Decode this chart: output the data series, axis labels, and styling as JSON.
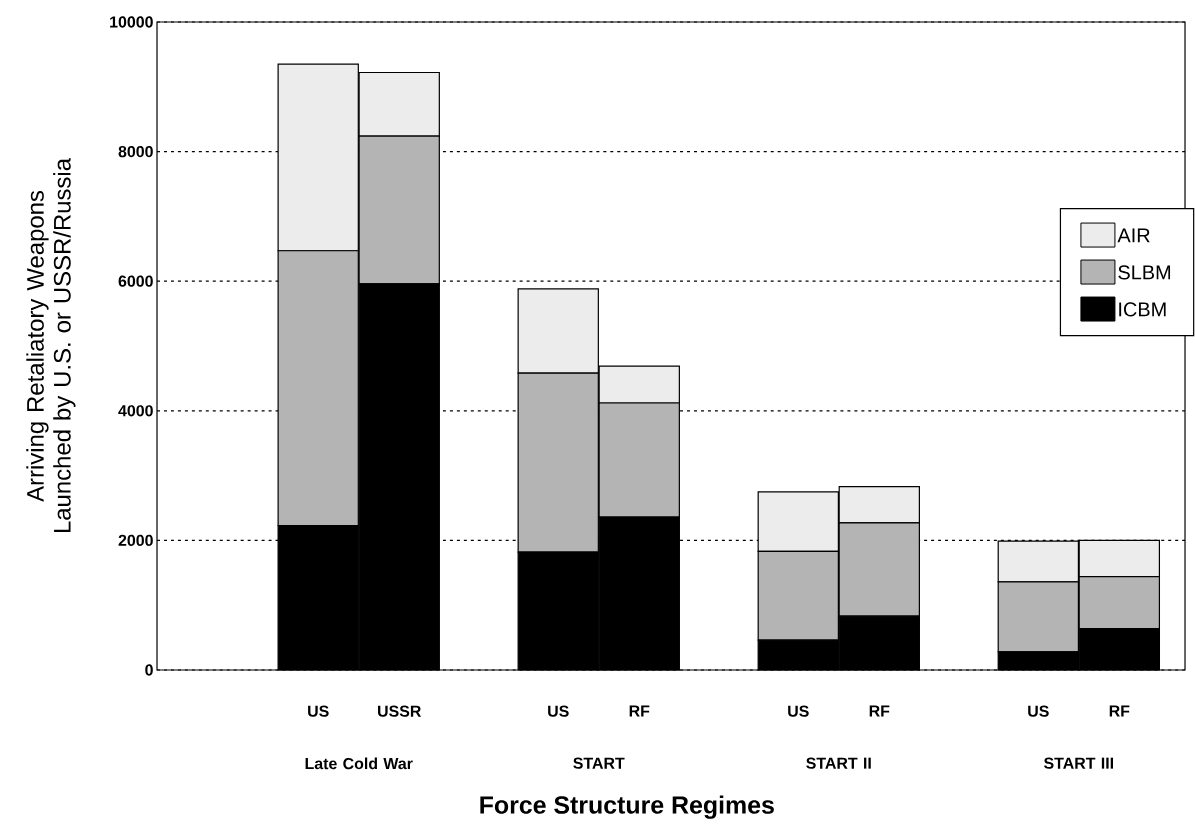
{
  "chart_data": {
    "type": "bar",
    "stacked": true,
    "categories": [
      "US",
      "USSR",
      "US",
      "RF",
      "US",
      "RF",
      "US",
      "RF"
    ],
    "series": [
      {
        "name": "ICBM",
        "color": "#000000",
        "values": [
          2230,
          5960,
          1820,
          2360,
          460,
          830,
          280,
          640
        ]
      },
      {
        "name": "SLBM",
        "color": "#b4b4b4",
        "values": [
          4240,
          2280,
          2760,
          1760,
          1370,
          1440,
          1080,
          800
        ]
      },
      {
        "name": "AIR",
        "color": "#ececec",
        "values": [
          2880,
          980,
          1300,
          570,
          920,
          560,
          630,
          560
        ]
      }
    ],
    "ylim": [
      0,
      10000
    ],
    "yticks": [
      0,
      2000,
      4000,
      6000,
      8000,
      10000
    ],
    "grid": "y",
    "legend": "right",
    "xlabel": "Force Structure Regimes",
    "ylabel": "Arriving Retaliatory Weapons Launched by U.S. or USSR/Russia",
    "annotations": [
      "Late Cold War",
      "START",
      "START II",
      "START III"
    ]
  }
}
